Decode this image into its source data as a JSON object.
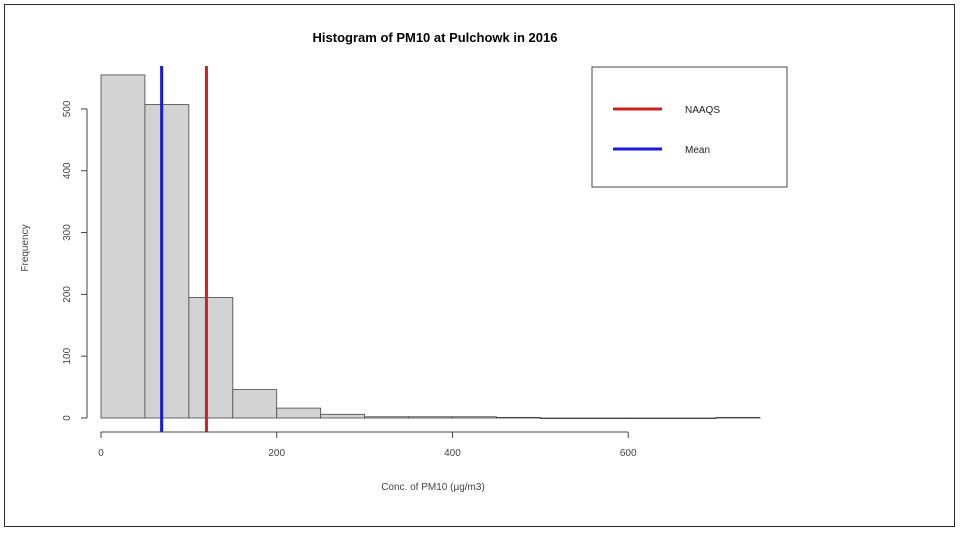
{
  "chart_data": {
    "type": "histogram",
    "title": "Histogram of PM10 at Pulchowk in 2016",
    "xlabel": "Conc. of PM10 (µg/m3)",
    "ylabel": "Frequency",
    "xlim": [
      0,
      750
    ],
    "ylim": [
      0,
      550
    ],
    "xticks": [
      0,
      200,
      400,
      600
    ],
    "yticks": [
      0,
      100,
      200,
      300,
      400,
      500
    ],
    "bin_width": 50,
    "bins": [
      {
        "start": 0,
        "end": 50,
        "count": 555
      },
      {
        "start": 50,
        "end": 100,
        "count": 507
      },
      {
        "start": 100,
        "end": 150,
        "count": 195
      },
      {
        "start": 150,
        "end": 200,
        "count": 46
      },
      {
        "start": 200,
        "end": 250,
        "count": 16
      },
      {
        "start": 250,
        "end": 300,
        "count": 6
      },
      {
        "start": 300,
        "end": 350,
        "count": 2
      },
      {
        "start": 350,
        "end": 400,
        "count": 2
      },
      {
        "start": 400,
        "end": 450,
        "count": 2
      },
      {
        "start": 450,
        "end": 500,
        "count": 1
      },
      {
        "start": 500,
        "end": 550,
        "count": 0
      },
      {
        "start": 550,
        "end": 600,
        "count": 0
      },
      {
        "start": 600,
        "end": 650,
        "count": 0
      },
      {
        "start": 650,
        "end": 700,
        "count": 0
      },
      {
        "start": 700,
        "end": 750,
        "count": 1
      }
    ],
    "bar_color": "#d3d3d3",
    "reference_lines": [
      {
        "name": "NAAQS",
        "x": 120,
        "color": "#cc2222"
      },
      {
        "name": "Mean",
        "x": 69,
        "color": "#1a1adb"
      }
    ],
    "legend": {
      "position": "top-right",
      "entries": [
        {
          "label": "NAAQS",
          "color": "#cc2222"
        },
        {
          "label": "Mean",
          "color": "#1a1adb"
        }
      ]
    },
    "grid": false
  }
}
